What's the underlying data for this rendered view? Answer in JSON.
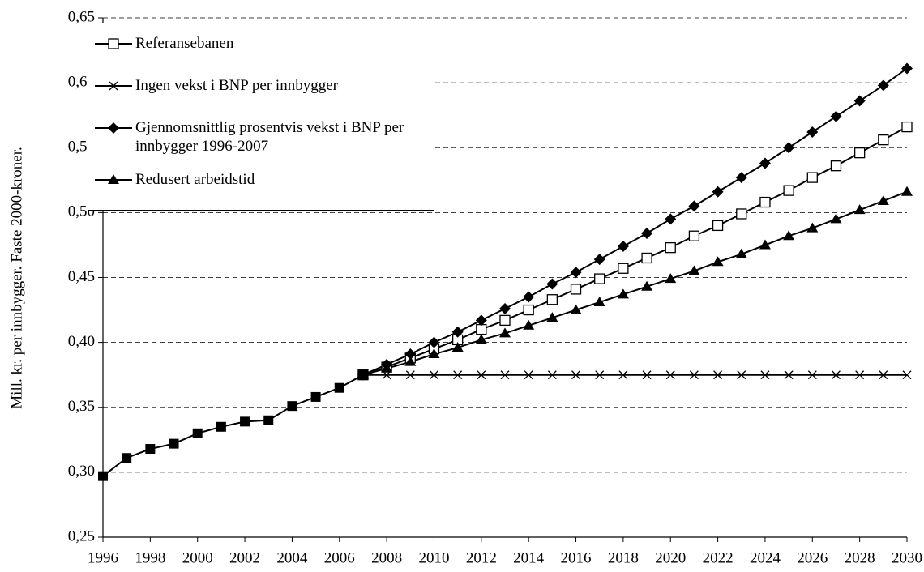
{
  "chart_data": {
    "type": "line",
    "y_label": "Mill. kr. per innbygger. Faste 2000-kroner.",
    "xlim": [
      1996,
      2030
    ],
    "xticks": [
      1996,
      1998,
      2000,
      2002,
      2004,
      2006,
      2008,
      2010,
      2012,
      2014,
      2016,
      2018,
      2020,
      2022,
      2024,
      2026,
      2028,
      2030
    ],
    "ylim": [
      0.25,
      0.65
    ],
    "yticks": [
      {
        "value": 0.25,
        "label": "0,25"
      },
      {
        "value": 0.3,
        "label": "0,30"
      },
      {
        "value": 0.35,
        "label": "0,35"
      },
      {
        "value": 0.4,
        "label": "0,40"
      },
      {
        "value": 0.45,
        "label": "0,45"
      },
      {
        "value": 0.5,
        "label": "0,50"
      },
      {
        "value": 0.55,
        "label": "0,55"
      },
      {
        "value": 0.6,
        "label": "0,60"
      },
      {
        "value": 0.65,
        "label": "0,65"
      }
    ],
    "grid": true,
    "legend": "upper left",
    "series": [
      {
        "name": "Referansebanen",
        "color": "#000000",
        "marker": "square-open",
        "x": [
          2007,
          2008,
          2009,
          2010,
          2011,
          2012,
          2013,
          2014,
          2015,
          2016,
          2017,
          2018,
          2019,
          2020,
          2021,
          2022,
          2023,
          2024,
          2025,
          2026,
          2027,
          2028,
          2029,
          2030
        ],
        "values": [
          0.375,
          0.381,
          0.388,
          0.395,
          0.402,
          0.41,
          0.417,
          0.425,
          0.433,
          0.441,
          0.449,
          0.457,
          0.465,
          0.473,
          0.482,
          0.49,
          0.499,
          0.508,
          0.517,
          0.527,
          0.536,
          0.546,
          0.556,
          0.566
        ]
      },
      {
        "name": "Ingen vekst i BNP per innbygger",
        "color": "#000000",
        "marker": "cross",
        "x": [
          2007,
          2008,
          2009,
          2010,
          2011,
          2012,
          2013,
          2014,
          2015,
          2016,
          2017,
          2018,
          2019,
          2020,
          2021,
          2022,
          2023,
          2024,
          2025,
          2026,
          2027,
          2028,
          2029,
          2030
        ],
        "values": [
          0.375,
          0.375,
          0.375,
          0.375,
          0.375,
          0.375,
          0.375,
          0.375,
          0.375,
          0.375,
          0.375,
          0.375,
          0.375,
          0.375,
          0.375,
          0.375,
          0.375,
          0.375,
          0.375,
          0.375,
          0.375,
          0.375,
          0.375,
          0.375
        ]
      },
      {
        "name": "Gjennomsnittlig prosentvis vekst i BNP per innbygger 1996-2007",
        "color": "#000000",
        "marker": "diamond",
        "x": [
          2007,
          2008,
          2009,
          2010,
          2011,
          2012,
          2013,
          2014,
          2015,
          2016,
          2017,
          2018,
          2019,
          2020,
          2021,
          2022,
          2023,
          2024,
          2025,
          2026,
          2027,
          2028,
          2029,
          2030
        ],
        "values": [
          0.375,
          0.383,
          0.391,
          0.4,
          0.408,
          0.417,
          0.426,
          0.435,
          0.445,
          0.454,
          0.464,
          0.474,
          0.484,
          0.495,
          0.505,
          0.516,
          0.527,
          0.538,
          0.55,
          0.562,
          0.574,
          0.586,
          0.598,
          0.611
        ]
      },
      {
        "name": "Redusert arbeidstid",
        "color": "#000000",
        "marker": "triangle",
        "x": [
          2007,
          2008,
          2009,
          2010,
          2011,
          2012,
          2013,
          2014,
          2015,
          2016,
          2017,
          2018,
          2019,
          2020,
          2021,
          2022,
          2023,
          2024,
          2025,
          2026,
          2027,
          2028,
          2029,
          2030
        ],
        "values": [
          0.375,
          0.38,
          0.385,
          0.391,
          0.396,
          0.402,
          0.407,
          0.413,
          0.419,
          0.425,
          0.431,
          0.437,
          0.443,
          0.449,
          0.455,
          0.462,
          0.468,
          0.475,
          0.482,
          0.488,
          0.495,
          0.502,
          0.509,
          0.516
        ]
      },
      {
        "color": "#000000",
        "marker": "square-filled",
        "x": [
          1996,
          1997,
          1998,
          1999,
          2000,
          2001,
          2002,
          2003,
          2004,
          2005,
          2006,
          2007
        ],
        "values": [
          0.297,
          0.311,
          0.318,
          0.322,
          0.33,
          0.335,
          0.339,
          0.34,
          0.351,
          0.358,
          0.365,
          0.375
        ]
      }
    ]
  }
}
